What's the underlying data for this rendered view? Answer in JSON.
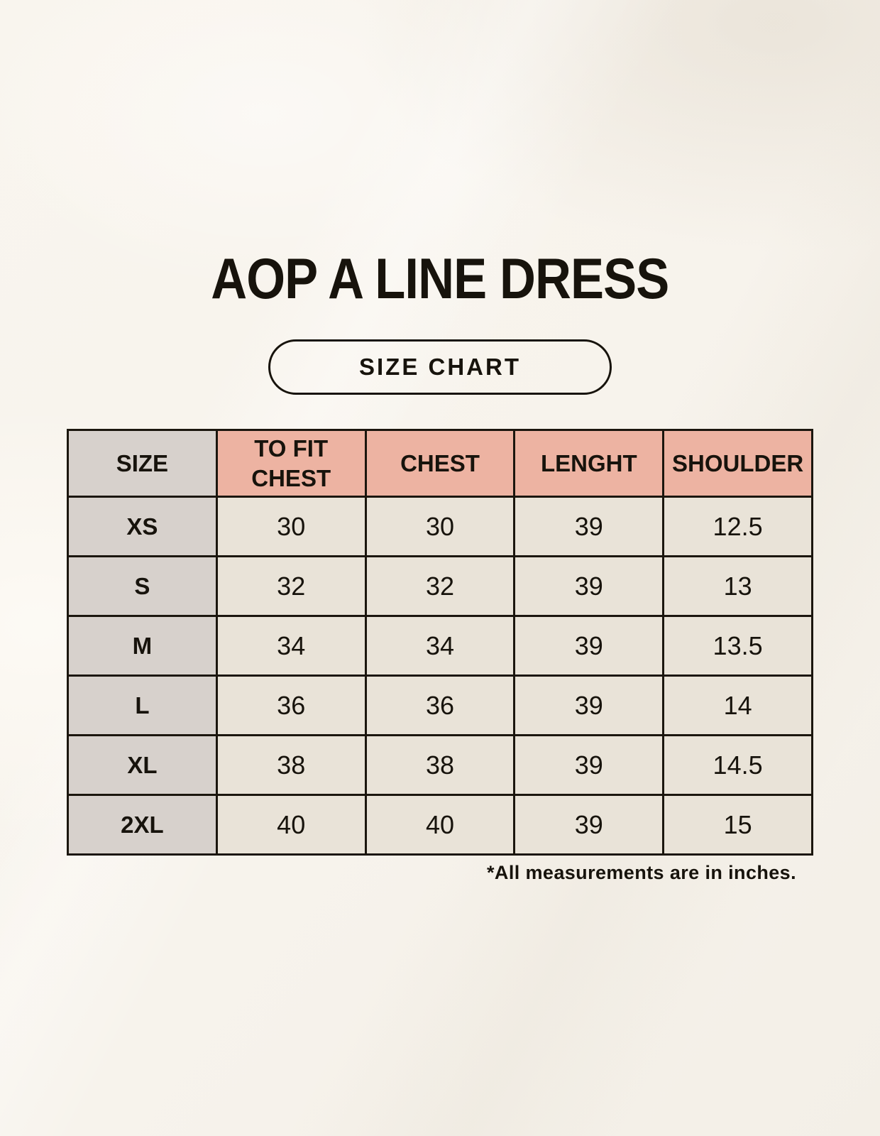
{
  "header": {
    "title": "AOP A LINE DRESS",
    "badge_label": "SIZE CHART"
  },
  "footnote": "*All measurements are in inches.",
  "colors": {
    "background": "#f7f3ec",
    "header_accent_pink": "#edb3a2",
    "label_gray": "#d7d1cc",
    "cell_cream": "#e9e3d8",
    "border": "#1b160e",
    "text": "#17130c"
  },
  "chart_data": {
    "type": "table",
    "title": "AOP A LINE DRESS",
    "subtitle": "SIZE CHART",
    "units": "inches",
    "columns": [
      "SIZE",
      "TO FIT CHEST",
      "CHEST",
      "LENGHT",
      "SHOULDER"
    ],
    "rows": [
      [
        "XS",
        "30",
        "30",
        "39",
        "12.5"
      ],
      [
        "S",
        "32",
        "32",
        "39",
        "13"
      ],
      [
        "M",
        "34",
        "34",
        "39",
        "13.5"
      ],
      [
        "L",
        "36",
        "36",
        "39",
        "14"
      ],
      [
        "XL",
        "38",
        "38",
        "39",
        "14.5"
      ],
      [
        "2XL",
        "40",
        "40",
        "39",
        "15"
      ]
    ],
    "note": "*All measurements are in inches."
  }
}
